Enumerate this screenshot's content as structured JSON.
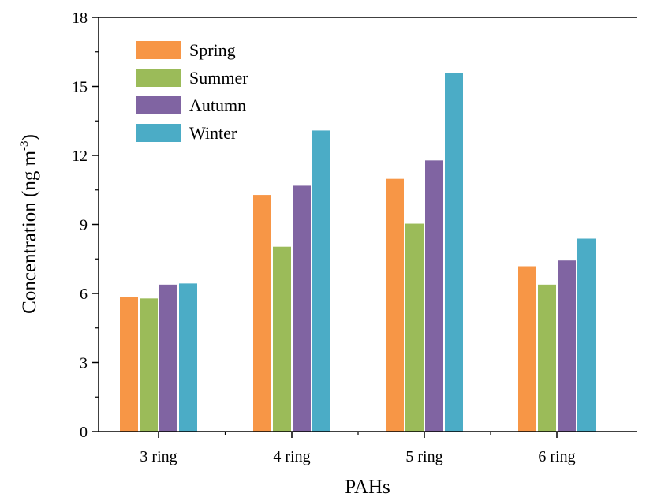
{
  "chart_data": {
    "type": "bar",
    "xlabel": "PAHs",
    "ylabel_main": "Concentration (ng m",
    "ylabel_sup": "-3",
    "ylabel_close": ")",
    "ylim": [
      0,
      18
    ],
    "yticks": [
      0,
      3,
      6,
      9,
      12,
      15,
      18
    ],
    "categories": [
      "3 ring",
      "4 ring",
      "5 ring",
      "6 ring"
    ],
    "legend_position": "top-left",
    "series": [
      {
        "name": "Spring",
        "color": "#F79646",
        "values": [
          5.85,
          10.3,
          11.0,
          7.2
        ]
      },
      {
        "name": "Summer",
        "color": "#9BBB59",
        "values": [
          5.8,
          8.05,
          9.05,
          6.4
        ]
      },
      {
        "name": "Autumn",
        "color": "#8064A2",
        "values": [
          6.4,
          10.7,
          11.8,
          7.45
        ]
      },
      {
        "name": "Winter",
        "color": "#4BACC6",
        "values": [
          6.45,
          13.1,
          15.6,
          8.4
        ]
      }
    ]
  }
}
